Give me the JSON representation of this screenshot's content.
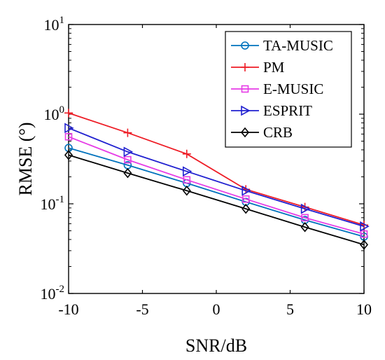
{
  "chart_data": {
    "type": "line",
    "title": "",
    "xlabel": "SNR/dB",
    "ylabel": "RMSE (°)",
    "y_scale": "log",
    "xlim": [
      -10,
      10
    ],
    "ylim": [
      0.01,
      10
    ],
    "x_ticks": [
      -10,
      -5,
      0,
      5,
      10
    ],
    "x_tick_labels": [
      "-10",
      "-5",
      "0",
      "5",
      "10"
    ],
    "y_ticks": [
      {
        "value": 0.01,
        "base": "10",
        "exp": "-2"
      },
      {
        "value": 0.1,
        "base": "10",
        "exp": "-1"
      },
      {
        "value": 1,
        "base": "10",
        "exp": "0"
      },
      {
        "value": 10,
        "base": "10",
        "exp": "1"
      }
    ],
    "grid": false,
    "legend_position": "top-right",
    "x": [
      -10,
      -6,
      -2,
      2,
      6,
      10
    ],
    "series": [
      {
        "name": "TA-MUSIC",
        "color": "#0072BD",
        "marker": "circle",
        "values": [
          0.42,
          0.27,
          0.17,
          0.105,
          0.066,
          0.043
        ]
      },
      {
        "name": "PM",
        "color": "#EE1C25",
        "marker": "plus",
        "values": [
          1.03,
          0.62,
          0.36,
          0.145,
          0.092,
          0.058
        ]
      },
      {
        "name": "E-MUSIC",
        "color": "#E63CE6",
        "marker": "square",
        "values": [
          0.56,
          0.31,
          0.185,
          0.113,
          0.07,
          0.046
        ]
      },
      {
        "name": "ESPRIT",
        "color": "#2020D0",
        "marker": "triangle-right",
        "values": [
          0.7,
          0.38,
          0.23,
          0.14,
          0.088,
          0.056
        ]
      },
      {
        "name": "CRB",
        "color": "#000000",
        "marker": "diamond",
        "values": [
          0.35,
          0.22,
          0.14,
          0.088,
          0.055,
          0.035
        ]
      }
    ]
  }
}
